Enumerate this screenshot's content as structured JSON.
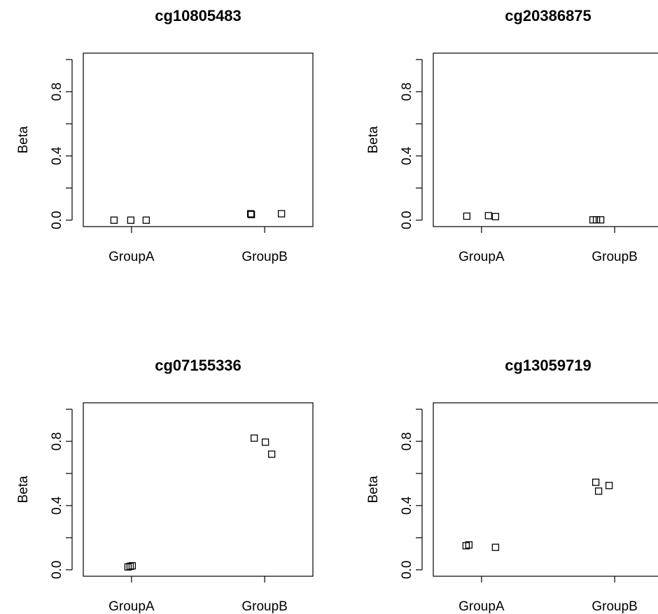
{
  "chart_data": [
    {
      "type": "scatter",
      "title": "cg10805483",
      "xlabel": "",
      "ylabel": "Beta",
      "categories": [
        "GroupA",
        "GroupB"
      ],
      "yticks": [
        "0.0",
        "0.4",
        "0.8"
      ],
      "ylim": [
        0,
        1
      ],
      "points": [
        {
          "group": "GroupA",
          "y": 0.0
        },
        {
          "group": "GroupA",
          "y": 0.0
        },
        {
          "group": "GroupA",
          "y": 0.0
        },
        {
          "group": "GroupB",
          "y": 0.04
        },
        {
          "group": "GroupB",
          "y": 0.035
        },
        {
          "group": "GroupB",
          "y": 0.04
        }
      ]
    },
    {
      "type": "scatter",
      "title": "cg20386875",
      "xlabel": "",
      "ylabel": "Beta",
      "categories": [
        "GroupA",
        "GroupB"
      ],
      "yticks": [
        "0.0",
        "0.4",
        "0.8"
      ],
      "ylim": [
        0,
        1
      ],
      "points": [
        {
          "group": "GroupA",
          "y": 0.025
        },
        {
          "group": "GroupA",
          "y": 0.028
        },
        {
          "group": "GroupA",
          "y": 0.022
        },
        {
          "group": "GroupB",
          "y": 0.002
        },
        {
          "group": "GroupB",
          "y": 0.002
        },
        {
          "group": "GroupB",
          "y": 0.002
        }
      ]
    },
    {
      "type": "scatter",
      "title": "cg07155336",
      "xlabel": "",
      "ylabel": "Beta",
      "categories": [
        "GroupA",
        "GroupB"
      ],
      "yticks": [
        "0.0",
        "0.4",
        "0.8"
      ],
      "ylim": [
        0,
        1
      ],
      "points": [
        {
          "group": "GroupA",
          "y": 0.018
        },
        {
          "group": "GroupA",
          "y": 0.022
        },
        {
          "group": "GroupA",
          "y": 0.025
        },
        {
          "group": "GroupB",
          "y": 0.82
        },
        {
          "group": "GroupB",
          "y": 0.795
        },
        {
          "group": "GroupB",
          "y": 0.72
        }
      ]
    },
    {
      "type": "scatter",
      "title": "cg13059719",
      "xlabel": "",
      "ylabel": "Beta",
      "categories": [
        "GroupA",
        "GroupB"
      ],
      "yticks": [
        "0.0",
        "0.4",
        "0.8"
      ],
      "ylim": [
        0,
        1
      ],
      "points": [
        {
          "group": "GroupA",
          "y": 0.15
        },
        {
          "group": "GroupA",
          "y": 0.155
        },
        {
          "group": "GroupA",
          "y": 0.14
        },
        {
          "group": "GroupB",
          "y": 0.545
        },
        {
          "group": "GroupB",
          "y": 0.49
        },
        {
          "group": "GroupB",
          "y": 0.525
        }
      ]
    }
  ]
}
